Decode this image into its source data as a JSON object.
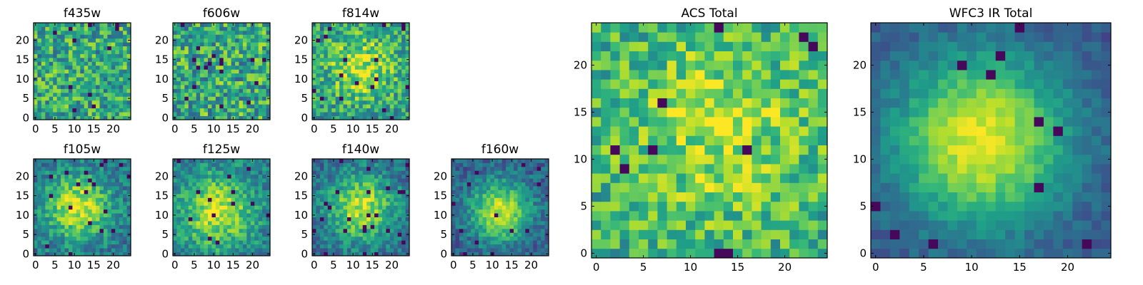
{
  "figure": {
    "description_hidden": false
  },
  "chart_data": [
    {
      "type": "heatmap",
      "title": "f435w",
      "grid_size": 25,
      "xlim": [
        0,
        24
      ],
      "ylim": [
        0,
        24
      ],
      "xticks": [
        0,
        5,
        10,
        15,
        20
      ],
      "yticks": [
        0,
        5,
        10,
        15,
        20
      ],
      "colormap": "viridis",
      "pattern": "noise",
      "noise": 0.28,
      "seed": 11
    },
    {
      "type": "heatmap",
      "title": "f606w",
      "grid_size": 25,
      "xlim": [
        0,
        24
      ],
      "ylim": [
        0,
        24
      ],
      "xticks": [
        0,
        5,
        10,
        15,
        20
      ],
      "yticks": [
        0,
        5,
        10,
        15,
        20
      ],
      "colormap": "viridis",
      "pattern": "noise",
      "noise": 0.3,
      "seed": 23
    },
    {
      "type": "heatmap",
      "title": "f814w",
      "grid_size": 25,
      "xlim": [
        0,
        24
      ],
      "ylim": [
        0,
        24
      ],
      "xticks": [
        0,
        5,
        10,
        15,
        20
      ],
      "yticks": [
        0,
        5,
        10,
        15,
        20
      ],
      "colormap": "viridis",
      "pattern": "blob",
      "peak_x": 12,
      "peak_y": 13,
      "peak": 0.35,
      "spread": 6,
      "base": 0.55,
      "noise": 0.25,
      "seed": 37
    },
    {
      "type": "heatmap",
      "title": "f105w",
      "grid_size": 25,
      "xlim": [
        0,
        24
      ],
      "ylim": [
        0,
        24
      ],
      "xticks": [
        0,
        5,
        10,
        15,
        20
      ],
      "yticks": [
        0,
        5,
        10,
        15,
        20
      ],
      "colormap": "viridis",
      "pattern": "blob",
      "peak_x": 11,
      "peak_y": 12,
      "peak": 0.55,
      "spread": 6,
      "base": 0.38,
      "noise": 0.18,
      "seed": 41
    },
    {
      "type": "heatmap",
      "title": "f125w",
      "grid_size": 25,
      "xlim": [
        0,
        24
      ],
      "ylim": [
        0,
        24
      ],
      "xticks": [
        0,
        5,
        10,
        15,
        20
      ],
      "yticks": [
        0,
        5,
        10,
        15,
        20
      ],
      "colormap": "viridis",
      "pattern": "blob",
      "peak_x": 11,
      "peak_y": 11,
      "peak": 0.5,
      "spread": 6.5,
      "base": 0.42,
      "noise": 0.18,
      "seed": 53
    },
    {
      "type": "heatmap",
      "title": "f140w",
      "grid_size": 25,
      "xlim": [
        0,
        24
      ],
      "ylim": [
        0,
        24
      ],
      "xticks": [
        0,
        5,
        10,
        15,
        20
      ],
      "yticks": [
        0,
        5,
        10,
        15,
        20
      ],
      "colormap": "viridis",
      "pattern": "blob",
      "peak_x": 12,
      "peak_y": 12,
      "peak": 0.55,
      "spread": 6,
      "base": 0.35,
      "noise": 0.17,
      "seed": 67
    },
    {
      "type": "heatmap",
      "title": "f160w",
      "grid_size": 25,
      "xlim": [
        0,
        24
      ],
      "ylim": [
        0,
        24
      ],
      "xticks": [
        0,
        5,
        10,
        15,
        20
      ],
      "yticks": [
        0,
        5,
        10,
        15,
        20
      ],
      "colormap": "viridis",
      "pattern": "blob",
      "peak_x": 12,
      "peak_y": 11,
      "peak": 0.62,
      "spread": 5.5,
      "base": 0.3,
      "noise": 0.15,
      "seed": 79
    },
    {
      "type": "heatmap",
      "title": "ACS Total",
      "grid_size": 25,
      "xlim": [
        0,
        24
      ],
      "ylim": [
        0,
        24
      ],
      "xticks": [
        0,
        5,
        10,
        15,
        20
      ],
      "yticks": [
        0,
        5,
        10,
        15,
        20
      ],
      "colormap": "viridis",
      "pattern": "blob",
      "peak_x": 13,
      "peak_y": 13,
      "peak": 0.25,
      "spread": 7,
      "base": 0.62,
      "noise": 0.22,
      "seed": 97
    },
    {
      "type": "heatmap",
      "title": "WFC3 IR Total",
      "grid_size": 25,
      "xlim": [
        0,
        24
      ],
      "ylim": [
        0,
        24
      ],
      "xticks": [
        0,
        5,
        10,
        15,
        20
      ],
      "yticks": [
        0,
        5,
        10,
        15,
        20
      ],
      "colormap": "viridis",
      "pattern": "blob",
      "peak_x": 11,
      "peak_y": 12,
      "peak": 0.72,
      "spread": 6.5,
      "base": 0.25,
      "noise": 0.08,
      "seed": 113
    }
  ]
}
